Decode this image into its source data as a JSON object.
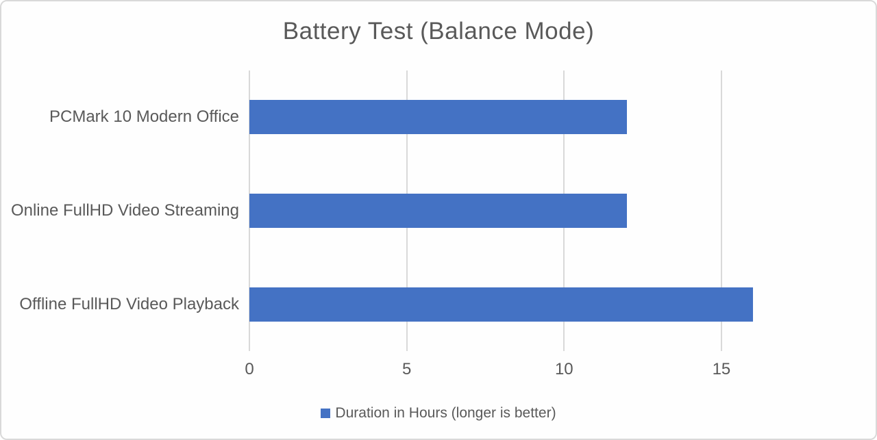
{
  "chart_data": {
    "type": "bar",
    "orientation": "horizontal",
    "title": "Battery Test (Balance Mode)",
    "categories": [
      "PCMark 10 Modern Office",
      "Online FullHD Video Streaming",
      "Offline FullHD Video Playback"
    ],
    "values": [
      12,
      12,
      16
    ],
    "x_ticks": [
      0,
      5,
      10,
      15
    ],
    "xlim": [
      0,
      19
    ],
    "grid": true,
    "legend_position": "bottom",
    "legend_label": "Duration in Hours (longer is better)",
    "colors": {
      "bar": "#4472c4",
      "text": "#595959",
      "gridline": "#d9d9d9",
      "frame_border": "#d9d9d9",
      "background": "#fefefe"
    }
  }
}
